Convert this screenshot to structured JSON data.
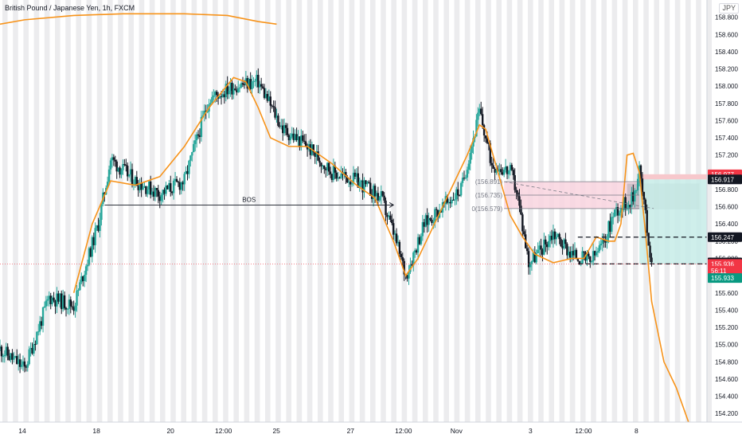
{
  "header": {
    "symbol_title": "British Pound / Japanese Yen, 1h, FXCM",
    "currency_badge": "JPY"
  },
  "chart_data": {
    "type": "candlestick",
    "title": "British Pound / Japanese Yen, 1h, FXCM",
    "ylim": [
      154.1,
      159.0
    ],
    "grid": false,
    "y_ticks": [
      "158.800",
      "158.600",
      "158.400",
      "158.200",
      "158.000",
      "157.800",
      "157.600",
      "157.400",
      "157.200",
      "157.000",
      "156.800",
      "156.600",
      "156.400",
      "156.200",
      "156.000",
      "155.800",
      "155.600",
      "155.400",
      "155.200",
      "155.000",
      "154.800",
      "154.600",
      "154.400",
      "154.200"
    ],
    "x_ticks": [
      "14",
      "18",
      "20",
      "12:00",
      "25",
      "27",
      "12:00",
      "Nov",
      "3",
      "12:00",
      "8"
    ],
    "x_session_range": [
      0,
      115
    ],
    "price_path": [
      [
        0,
        154.95
      ],
      [
        4,
        154.72
      ],
      [
        8,
        155.55
      ],
      [
        12,
        155.45
      ],
      [
        16,
        156.4
      ],
      [
        18,
        157.15
      ],
      [
        22,
        156.9
      ],
      [
        26,
        156.75
      ],
      [
        30,
        156.9
      ],
      [
        34,
        157.85
      ],
      [
        38,
        158.0
      ],
      [
        42,
        158.05
      ],
      [
        46,
        157.5
      ],
      [
        50,
        157.3
      ],
      [
        54,
        157.0
      ],
      [
        58,
        156.9
      ],
      [
        62,
        156.7
      ],
      [
        64,
        156.3
      ],
      [
        66,
        155.8
      ],
      [
        69,
        156.4
      ],
      [
        72,
        156.6
      ],
      [
        75,
        156.8
      ],
      [
        78,
        157.7
      ],
      [
        80,
        157.1
      ],
      [
        83,
        157.0
      ],
      [
        84,
        156.8
      ],
      [
        86,
        155.95
      ],
      [
        88,
        156.1
      ],
      [
        90,
        156.3
      ],
      [
        93,
        156.05
      ],
      [
        96,
        155.96
      ],
      [
        98,
        156.15
      ],
      [
        100,
        156.55
      ],
      [
        103,
        156.7
      ],
      [
        104,
        157.05
      ],
      [
        106,
        155.93
      ]
    ],
    "orange_curve": [
      [
        0,
        158.72
      ],
      [
        4,
        158.77
      ],
      [
        12,
        158.82
      ],
      [
        20,
        158.84
      ],
      [
        30,
        158.84
      ],
      [
        37,
        158.82
      ],
      [
        42,
        158.75
      ],
      [
        45,
        158.72
      ],
      null,
      [
        12,
        155.6
      ],
      [
        15,
        156.4
      ],
      [
        18,
        156.9
      ],
      [
        22,
        156.85
      ],
      [
        26,
        156.95
      ],
      [
        30,
        157.3
      ],
      [
        34,
        157.75
      ],
      [
        38,
        158.1
      ],
      [
        40,
        158.05
      ],
      [
        42,
        157.75
      ],
      [
        44,
        157.4
      ],
      [
        47,
        157.3
      ],
      [
        50,
        157.3
      ],
      [
        54,
        157.1
      ],
      [
        58,
        156.85
      ],
      [
        61,
        156.7
      ],
      [
        64,
        156.2
      ],
      [
        66,
        155.8
      ],
      [
        68,
        156.0
      ],
      [
        70,
        156.3
      ],
      [
        72,
        156.6
      ],
      [
        74,
        156.9
      ],
      [
        76,
        157.2
      ],
      [
        78,
        157.55
      ],
      [
        79,
        157.5
      ],
      [
        81,
        157.0
      ],
      [
        83,
        156.5
      ],
      [
        85,
        156.25
      ],
      [
        87,
        156.05
      ],
      [
        90,
        155.95
      ],
      [
        93,
        156.0
      ],
      [
        95,
        156.0
      ],
      [
        97,
        156.25
      ],
      [
        99,
        156.2
      ],
      [
        100,
        156.2
      ],
      [
        101,
        156.4
      ],
      [
        102,
        157.2
      ],
      [
        103,
        157.22
      ],
      [
        104,
        157.0
      ],
      [
        105,
        156.3
      ],
      [
        106,
        155.5
      ],
      [
        108,
        154.8
      ],
      [
        110,
        154.5
      ],
      [
        112,
        154.1
      ]
    ],
    "fib_levels": [
      {
        "label": "(156.891)",
        "price": 156.891
      },
      {
        "label": "(156.735)",
        "price": 156.735
      },
      {
        "label": "0(156.579)",
        "price": 156.579
      }
    ],
    "bos": {
      "label": "BOS",
      "price": 156.62,
      "x_start": 17,
      "x_end": 64
    },
    "zones": {
      "supply_zone": {
        "top": 156.891,
        "bottom": 156.579,
        "color": "#f9d5df"
      },
      "grey_zone": {
        "top": 156.87,
        "bottom": 156.57,
        "color": "#a8a8ae"
      },
      "stop_zone": {
        "top": 156.977,
        "bottom": 156.917,
        "color": "#f7c8cc"
      },
      "target_zone": {
        "top": 156.917,
        "bottom": 155.936,
        "color": "#c7ece7"
      }
    },
    "dashed_levels": [
      {
        "price": 156.247
      },
      {
        "price": 155.936
      }
    ],
    "current_price_line": 155.936,
    "price_labels": [
      {
        "text": "156.977",
        "price": 156.977,
        "bg": "#f23645",
        "fg": "#ffffff"
      },
      {
        "text": "156.917",
        "price": 156.917,
        "bg": "#131722",
        "fg": "#ffffff"
      },
      {
        "text": "156.247",
        "price": 156.247,
        "bg": "#131722",
        "fg": "#ffffff"
      },
      {
        "text": "155.954",
        "price": 155.954,
        "bg": "#131722",
        "fg": "#ffffff"
      },
      {
        "text": "155.936",
        "price": 155.936,
        "bg": "#f23645",
        "fg": "#ffffff"
      },
      {
        "text": "56:11",
        "price": 155.858,
        "bg": "#f23645",
        "fg": "#ffffff"
      },
      {
        "text": "155.933",
        "price": 155.772,
        "bg": "#089981",
        "fg": "#ffffff"
      }
    ],
    "colors": {
      "bull": "#26a69a",
      "bear": "#131722",
      "orange": "#f7931a",
      "session_shade": "#ececee",
      "axis_text": "#131722",
      "price_line": "#f23645"
    }
  }
}
